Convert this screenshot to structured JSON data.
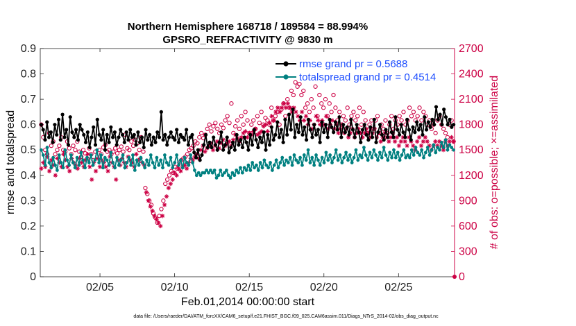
{
  "chart_data": {
    "type": "line",
    "title": "Northern Hemisphere 168718 / 189584 = 88.994%",
    "subtitle": "GPSRO_REFRACTIVITY @ 9830 m",
    "xlabel": "Feb.01,2014 00:00:00 start",
    "ylabel": "rmse and totalspread",
    "ylabel_right": "# of obs: o=possible; ×=assimilated",
    "footer": "data file: /Users/raeder/DAI/ATM_forcXX/CAM6_setup/f.e21.FHIST_BGC.f09_025.CAM6assim.011/Diags_NTrS_2014-02/obs_diag_output.nc",
    "x_range": [
      1,
      28.75
    ],
    "x_ticks": [
      5,
      10,
      15,
      20,
      25
    ],
    "x_tick_labels": [
      "02/05",
      "02/10",
      "02/15",
      "02/20",
      "02/25"
    ],
    "ylim": [
      0,
      0.9
    ],
    "y_ticks": [
      0,
      0.1,
      0.2,
      0.3,
      0.4,
      0.5,
      0.6,
      0.7,
      0.8,
      0.9
    ],
    "y_tick_labels": [
      "0",
      "0.1",
      "0.2",
      "0.3",
      "0.4",
      "0.5",
      "0.6",
      "0.7",
      "0.8",
      "0.9"
    ],
    "ylim_right": [
      0,
      2700
    ],
    "y_right_ticks": [
      0,
      300,
      600,
      900,
      1200,
      1500,
      1800,
      2100,
      2400,
      2700
    ],
    "y_right_tick_labels": [
      "0",
      "300",
      "600",
      "900",
      "1200",
      "1500",
      "1800",
      "2100",
      "2400",
      "2700"
    ],
    "legend_location": "top-right",
    "series": [
      {
        "name": "rmse grand pr = 0.5688",
        "color": "#000000",
        "marker": "filled-star",
        "values": [
          0.6,
          0.58,
          0.54,
          0.61,
          0.55,
          0.57,
          0.53,
          0.6,
          0.56,
          0.62,
          0.54,
          0.64,
          0.55,
          0.58,
          0.52,
          0.63,
          0.57,
          0.55,
          0.58,
          0.54,
          0.6,
          0.58,
          0.56,
          0.53,
          0.57,
          0.51,
          0.55,
          0.59,
          0.52,
          0.62,
          0.56,
          0.54,
          0.58,
          0.5,
          0.56,
          0.53,
          0.59,
          0.55,
          0.57,
          0.52,
          0.55,
          0.58,
          0.56,
          0.53,
          0.57,
          0.54,
          0.58,
          0.55,
          0.56,
          0.52,
          0.57,
          0.53,
          0.55,
          0.51,
          0.58,
          0.54,
          0.56,
          0.52,
          0.55,
          0.53,
          0.57,
          0.55,
          0.65,
          0.54,
          0.56,
          0.52,
          0.55,
          0.57,
          0.55,
          0.54,
          0.58,
          0.53,
          0.56,
          0.55,
          0.54,
          0.58,
          0.52,
          0.55,
          0.56,
          0.49,
          0.47,
          0.5,
          0.46,
          0.48,
          0.52,
          0.56,
          0.51,
          0.53,
          0.51,
          0.55,
          0.52,
          0.5,
          0.53,
          0.57,
          0.5,
          0.52,
          0.55,
          0.49,
          0.51,
          0.53,
          0.5,
          0.56,
          0.52,
          0.54,
          0.51,
          0.55,
          0.53,
          0.5,
          0.56,
          0.52,
          0.58,
          0.54,
          0.51,
          0.55,
          0.53,
          0.57,
          0.5,
          0.56,
          0.52,
          0.59,
          0.54,
          0.56,
          0.61,
          0.55,
          0.58,
          0.53,
          0.62,
          0.56,
          0.64,
          0.58,
          0.66,
          0.55,
          0.6,
          0.57,
          0.63,
          0.56,
          0.59,
          0.54,
          0.62,
          0.58,
          0.55,
          0.6,
          0.56,
          0.58,
          0.53,
          0.61,
          0.57,
          0.6,
          0.55,
          0.62,
          0.59,
          0.57,
          0.61,
          0.58,
          0.63,
          0.55,
          0.6,
          0.57,
          0.59,
          0.56,
          0.62,
          0.58,
          0.55,
          0.6,
          0.57,
          0.53,
          0.58,
          0.6,
          0.56,
          0.54,
          0.59,
          0.55,
          0.62,
          0.53,
          0.57,
          0.6,
          0.56,
          0.54,
          0.58,
          0.55,
          0.61,
          0.57,
          0.55,
          0.63,
          0.58,
          0.56,
          0.6,
          0.57,
          0.55,
          0.62,
          0.58,
          0.54,
          0.59,
          0.57,
          0.61,
          0.58,
          0.6,
          0.56,
          0.63,
          0.58,
          0.61,
          0.59,
          0.62,
          0.6,
          0.67,
          0.62,
          0.64,
          0.6,
          0.66,
          0.63,
          0.6,
          0.62,
          0.59,
          0.6
        ]
      },
      {
        "name": "totalspread grand pr = 0.4514",
        "color": "#008080",
        "marker": "filled-circle",
        "values": [
          0.5,
          0.48,
          0.44,
          0.51,
          0.45,
          0.43,
          0.47,
          0.44,
          0.42,
          0.48,
          0.45,
          0.43,
          0.5,
          0.46,
          0.44,
          0.48,
          0.45,
          0.43,
          0.47,
          0.44,
          0.49,
          0.46,
          0.43,
          0.47,
          0.45,
          0.48,
          0.44,
          0.46,
          0.5,
          0.45,
          0.48,
          0.43,
          0.47,
          0.46,
          0.44,
          0.49,
          0.45,
          0.43,
          0.47,
          0.44,
          0.46,
          0.48,
          0.43,
          0.45,
          0.47,
          0.44,
          0.48,
          0.42,
          0.46,
          0.44,
          0.47,
          0.45,
          0.43,
          0.46,
          0.44,
          0.48,
          0.45,
          0.43,
          0.47,
          0.44,
          0.46,
          0.43,
          0.48,
          0.45,
          0.44,
          0.47,
          0.43,
          0.45,
          0.48,
          0.44,
          0.46,
          0.43,
          0.47,
          0.45,
          0.44,
          0.48,
          0.45,
          0.42,
          0.4,
          0.41,
          0.4,
          0.41,
          0.41,
          0.42,
          0.41,
          0.42,
          0.41,
          0.42,
          0.39,
          0.4,
          0.42,
          0.4,
          0.41,
          0.42,
          0.4,
          0.39,
          0.41,
          0.4,
          0.42,
          0.41,
          0.43,
          0.41,
          0.43,
          0.42,
          0.44,
          0.42,
          0.45,
          0.43,
          0.44,
          0.42,
          0.45,
          0.43,
          0.46,
          0.44,
          0.43,
          0.45,
          0.42,
          0.44,
          0.46,
          0.43,
          0.45,
          0.47,
          0.44,
          0.46,
          0.45,
          0.47,
          0.44,
          0.48,
          0.46,
          0.45,
          0.47,
          0.44,
          0.48,
          0.46,
          0.5,
          0.45,
          0.47,
          0.44,
          0.48,
          0.46,
          0.44,
          0.47,
          0.45,
          0.49,
          0.46,
          0.48,
          0.45,
          0.47,
          0.5,
          0.46,
          0.48,
          0.45,
          0.47,
          0.49,
          0.46,
          0.48,
          0.45,
          0.47,
          0.5,
          0.46,
          0.48,
          0.47,
          0.51,
          0.48,
          0.46,
          0.49,
          0.47,
          0.5,
          0.48,
          0.46,
          0.49,
          0.47,
          0.51,
          0.48,
          0.46,
          0.49,
          0.47,
          0.5,
          0.47,
          0.49,
          0.46,
          0.48,
          0.5,
          0.47,
          0.48,
          0.47,
          0.5,
          0.48,
          0.51,
          0.49,
          0.48,
          0.5,
          0.47,
          0.49,
          0.51,
          0.48,
          0.5,
          0.52,
          0.49,
          0.51,
          0.5,
          0.53,
          0.51,
          0.54,
          0.5,
          0.52,
          0.51,
          0.5
        ]
      }
    ],
    "obs_series": [
      {
        "name": "possible",
        "color": "#cc0044",
        "marker": "open-circle",
        "values": [
          1800,
          1650,
          1500,
          1450,
          1700,
          1550,
          1600,
          1450,
          1500,
          1550,
          1650,
          1500,
          1480,
          1600,
          1520,
          1450,
          1550,
          1500,
          1600,
          1480,
          1420,
          1500,
          1460,
          1400,
          1520,
          1450,
          1380,
          1480,
          1420,
          1500,
          1450,
          1530,
          1560,
          1480,
          1500,
          1450,
          1480,
          1520,
          1460,
          1500,
          1540,
          1480,
          1680,
          1520,
          1500,
          1600,
          1550,
          1620,
          1580,
          1500,
          1650,
          1480,
          1050,
          980,
          900,
          850,
          750,
          700,
          640,
          720,
          800,
          900,
          1100,
          1150,
          1200,
          1250,
          1230,
          1300,
          1280,
          1350,
          1380,
          1400,
          1420,
          1450,
          1500,
          1520,
          1550,
          1600,
          1580,
          1650,
          1700,
          1640,
          1680,
          1750,
          1800,
          1720,
          1780,
          1820,
          1750,
          1700,
          1800,
          1760,
          1850,
          1900,
          1820,
          2050,
          1700,
          1780,
          1850,
          1750,
          1900,
          1800,
          1950,
          1850,
          1700,
          1800,
          1850,
          1750,
          1900,
          1820,
          1950,
          1800,
          1880,
          1850,
          1800,
          2000,
          1850,
          1900,
          1950,
          1800,
          1980,
          2050,
          1900,
          2100,
          2000,
          2200,
          2150,
          2300,
          2250,
          2280,
          2150,
          2200,
          2000,
          2050,
          1950,
          2100,
          2000,
          2250,
          1900,
          2150,
          2050,
          2000,
          2100,
          1900,
          2050,
          1950,
          2150,
          2000,
          1850,
          1950,
          1800,
          1900,
          1850,
          2000,
          1800,
          1900,
          1950,
          1850,
          1900,
          2000,
          1800,
          1950,
          1850,
          1700,
          1800,
          1850,
          1750,
          1850,
          1900,
          1700,
          1800,
          1750,
          1850,
          1700,
          1800,
          1900,
          1750,
          1850,
          1800,
          1900,
          1850,
          1950,
          1800,
          1850,
          2000,
          1900,
          1950,
          1850,
          1900,
          2000,
          1850,
          1950,
          1900,
          1800,
          1850,
          1750,
          1800,
          1700,
          1850,
          1900,
          1800,
          1750,
          1700,
          1650,
          1800,
          1850,
          1600
        ]
      },
      {
        "name": "assimilated",
        "color": "#cc0044",
        "marker": "star",
        "values": [
          1280,
          1350,
          1300,
          1420,
          1250,
          1380,
          1320,
          1200,
          1400,
          1350,
          1300,
          1450,
          1380,
          1300,
          1250,
          1400,
          1350,
          1320,
          1280,
          1400,
          1350,
          1300,
          1380,
          1450,
          1300,
          1150,
          1350,
          1250,
          1400,
          1300,
          1380,
          1350,
          1300,
          1250,
          1420,
          1350,
          1300,
          1150,
          1380,
          1320,
          1400,
          1350,
          1300,
          1420,
          1380,
          1350,
          1300,
          1450,
          1380,
          1400,
          1350,
          1320,
          1000,
          900,
          830,
          780,
          720,
          680,
          640,
          600,
          720,
          850,
          950,
          1050,
          1100,
          1150,
          1230,
          1200,
          1280,
          1250,
          1300,
          1320,
          1280,
          1350,
          1400,
          1380,
          1420,
          1450,
          1400,
          1500,
          1550,
          1480,
          1520,
          1550,
          1580,
          1500,
          1550,
          1600,
          1520,
          1580,
          1620,
          1550,
          1580,
          1600,
          1550,
          1620,
          1680,
          1640,
          1600,
          1650,
          1700,
          1720,
          1650,
          1700,
          1680,
          1720,
          1750,
          1680,
          1700,
          1720,
          1780,
          1800,
          1720,
          1820,
          1900,
          1850,
          1950,
          2000,
          1950,
          2000,
          2050,
          2000,
          2050,
          2000,
          1950,
          2000,
          1950,
          1900,
          1850,
          1950,
          1850,
          1900,
          1800,
          1850,
          1750,
          1800,
          1900,
          1850,
          1800,
          1850,
          1800,
          1900,
          1750,
          1800,
          1850,
          1750,
          1800,
          1700,
          1750,
          1800,
          1700,
          1750,
          1650,
          1700,
          1750,
          1650,
          1700,
          1750,
          1700,
          1650,
          1700,
          1750,
          1700,
          1650,
          1700,
          1750,
          1650,
          1700,
          1600,
          1650,
          1700,
          1650,
          1600,
          1650,
          1700,
          1600,
          1650,
          1550,
          1600,
          1650,
          1600,
          1550,
          1650,
          1600,
          1550,
          1500,
          1600,
          1650,
          1550,
          1600,
          1650,
          1600,
          1550,
          1500,
          1550,
          1600,
          1550,
          1600,
          1550,
          1500,
          1600,
          1550,
          1600,
          1650,
          1600
        ]
      }
    ]
  }
}
